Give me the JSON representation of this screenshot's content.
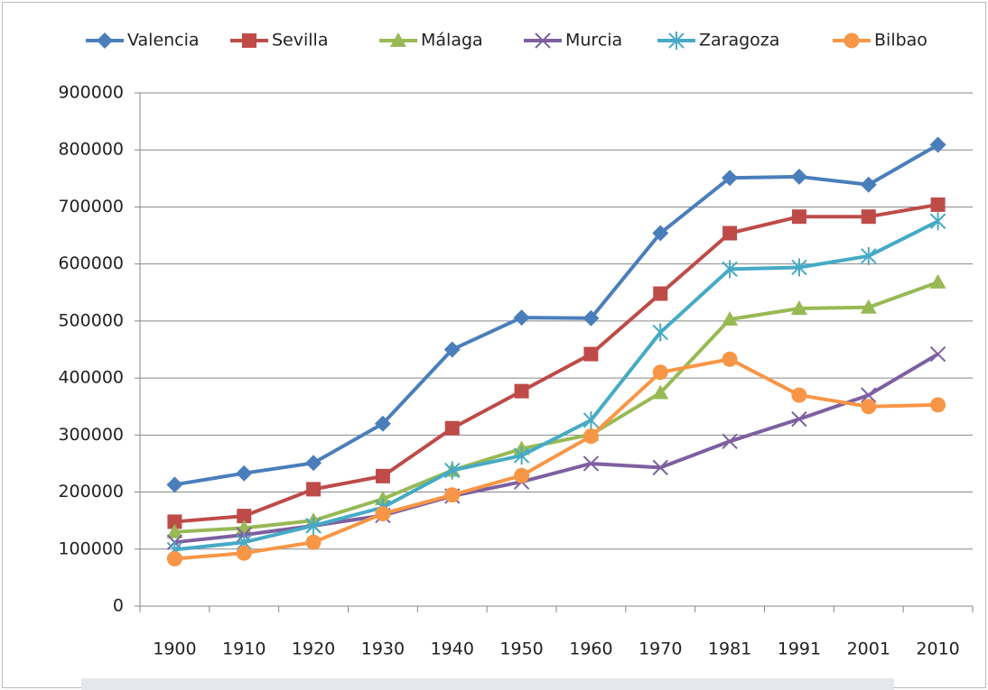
{
  "chart_data": {
    "type": "line",
    "categories": [
      "1900",
      "1910",
      "1920",
      "1930",
      "1940",
      "1950",
      "1960",
      "1970",
      "1981",
      "1991",
      "2001",
      "2010"
    ],
    "series": [
      {
        "name": "Valencia",
        "color": "#4a7ebb",
        "marker": "diamond",
        "values": [
          213000,
          233000,
          251000,
          320000,
          450000,
          506000,
          505000,
          654000,
          751000,
          753000,
          739000,
          809000
        ]
      },
      {
        "name": "Sevilla",
        "color": "#be4b48",
        "marker": "square",
        "values": [
          148000,
          158000,
          205000,
          228000,
          312000,
          377000,
          442000,
          548000,
          654000,
          683000,
          683000,
          704000
        ]
      },
      {
        "name": "Málaga",
        "color": "#98b954",
        "marker": "triangle",
        "values": [
          130000,
          137000,
          150000,
          188000,
          238000,
          276000,
          301000,
          374000,
          503000,
          522000,
          524000,
          568000
        ]
      },
      {
        "name": "Murcia",
        "color": "#7d60a0",
        "marker": "x",
        "values": [
          112000,
          125000,
          141000,
          159000,
          193000,
          218000,
          250000,
          243000,
          289000,
          328000,
          370000,
          442000
        ]
      },
      {
        "name": "Zaragoza",
        "color": "#46aac5",
        "marker": "star",
        "values": [
          99000,
          112000,
          141000,
          173000,
          238000,
          264000,
          326000,
          480000,
          591000,
          594000,
          614000,
          675000
        ]
      },
      {
        "name": "Bilbao",
        "color": "#f79646",
        "marker": "circle",
        "values": [
          83000,
          93000,
          112000,
          162000,
          195000,
          229000,
          298000,
          410000,
          433000,
          370000,
          350000,
          353000
        ]
      }
    ],
    "ylim": [
      0,
      900000
    ],
    "yticks": [
      0,
      100000,
      200000,
      300000,
      400000,
      500000,
      600000,
      700000,
      800000,
      900000
    ],
    "grid": true,
    "legend": "top"
  }
}
